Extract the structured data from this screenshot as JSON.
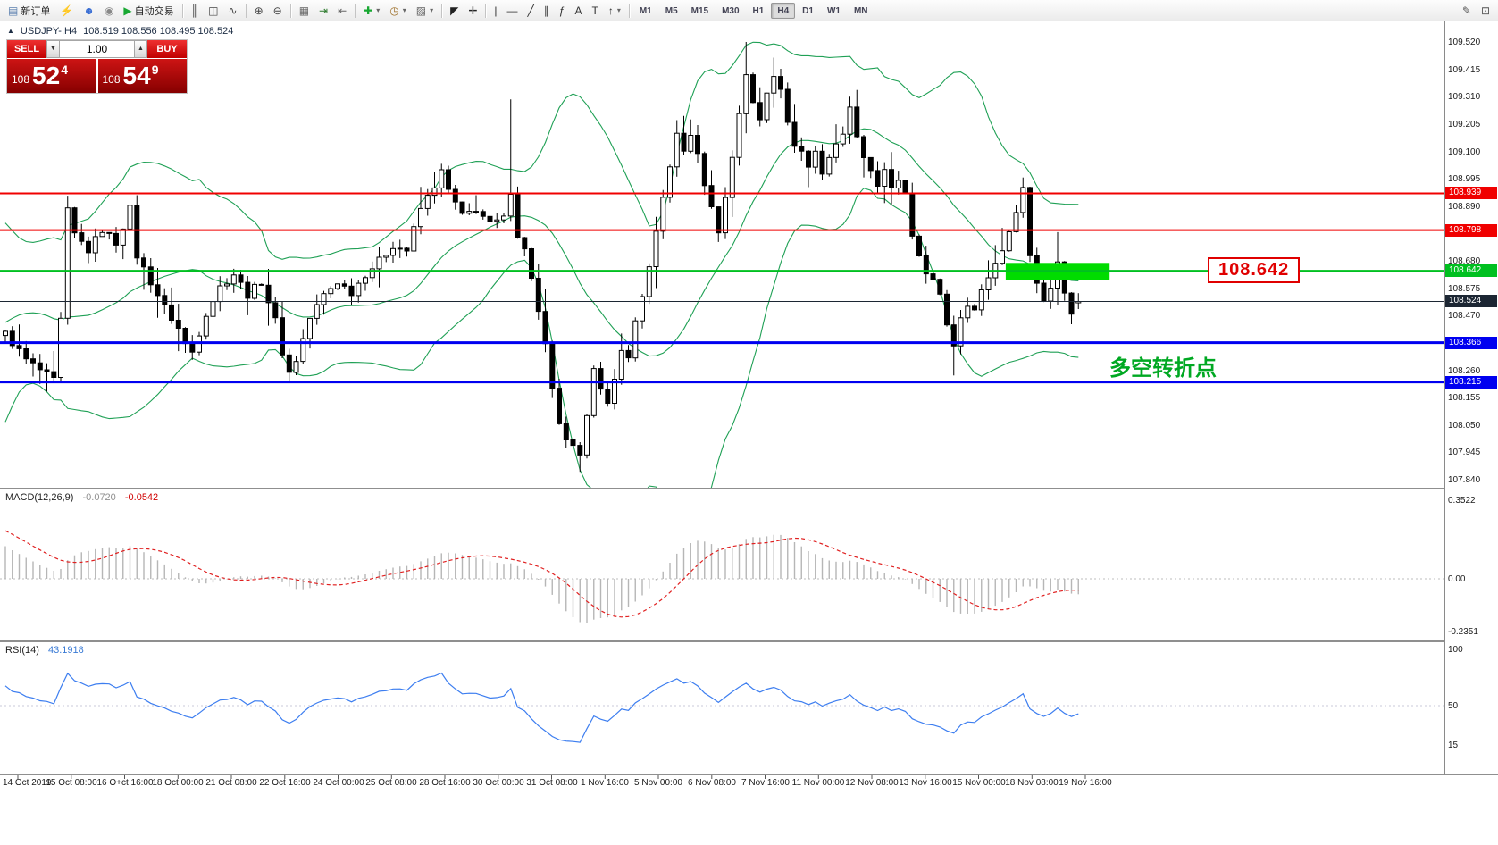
{
  "toolbar": {
    "caret_icon": "▾",
    "groups": [
      {
        "items": [
          {
            "name": "new-order",
            "icon": "▤",
            "label": "新订单",
            "color": "#5a7fae"
          },
          {
            "name": "news-alert",
            "icon": "⚡",
            "color": "#e0a010"
          },
          {
            "name": "market-watch",
            "icon": "☻",
            "color": "#3b6fd4"
          },
          {
            "name": "support",
            "icon": "◉",
            "color": "#888888"
          },
          {
            "name": "autotrading",
            "icon": "▶",
            "label": "自动交易",
            "color": "#18a832"
          }
        ]
      },
      {
        "items": [
          {
            "name": "bar-chart",
            "icon": "║",
            "color": "#444444"
          },
          {
            "name": "candlestick-chart",
            "icon": "◫",
            "color": "#444444"
          },
          {
            "name": "line-chart",
            "icon": "∿",
            "color": "#444444"
          }
        ]
      },
      {
        "items": [
          {
            "name": "zoom-in",
            "icon": "⊕",
            "color": "#444444"
          },
          {
            "name": "zoom-out",
            "icon": "⊖",
            "color": "#444444"
          }
        ]
      },
      {
        "items": [
          {
            "name": "tile-windows",
            "icon": "▦",
            "color": "#666666"
          },
          {
            "name": "auto-scroll",
            "icon": "⇥",
            "color": "#2c7a2c"
          },
          {
            "name": "chart-shift",
            "icon": "⇤",
            "color": "#666666"
          }
        ]
      },
      {
        "items": [
          {
            "name": "indicators",
            "icon": "✚",
            "color": "#18a832",
            "dropdown": true
          },
          {
            "name": "periods",
            "icon": "◷",
            "color": "#9a6a20",
            "dropdown": true
          },
          {
            "name": "templates",
            "icon": "▨",
            "color": "#666666",
            "dropdown": true
          }
        ]
      },
      {
        "items": [
          {
            "name": "cursor",
            "icon": "◤",
            "color": "#222222"
          },
          {
            "name": "crosshair",
            "icon": "✛",
            "color": "#222222"
          }
        ]
      },
      {
        "items": [
          {
            "name": "vertical-line",
            "icon": "|",
            "color": "#333333"
          },
          {
            "name": "horizontal-line",
            "icon": "—",
            "color": "#333333"
          },
          {
            "name": "trendline",
            "icon": "╱",
            "color": "#333333"
          },
          {
            "name": "equidistant-channel",
            "icon": "∥",
            "color": "#333333"
          },
          {
            "name": "fibonacci",
            "icon": "ƒ",
            "color": "#333333"
          },
          {
            "name": "text",
            "icon": "A",
            "color": "#333333"
          },
          {
            "name": "text-label",
            "icon": "T",
            "color": "#333333"
          },
          {
            "name": "arrows",
            "icon": "↑",
            "color": "#333333",
            "dropdown": true
          }
        ]
      },
      {
        "timeframes": [
          "M1",
          "M5",
          "M15",
          "M30",
          "H1",
          "H4",
          "D1",
          "W1",
          "MN"
        ],
        "active": "H4"
      },
      {
        "right": true,
        "items": [
          {
            "name": "pencil",
            "icon": "✎",
            "color": "#555555"
          },
          {
            "name": "screenshot",
            "icon": "⊡",
            "color": "#555555"
          }
        ]
      }
    ]
  },
  "chart_header": {
    "marker": "▲",
    "symbol": "USDJPY-,H4",
    "ohlc": "108.519 108.556 108.495 108.524"
  },
  "trade_panel": {
    "sell_label": "SELL",
    "buy_label": "BUY",
    "volume": "1.00",
    "spin_down": "▼",
    "spin_up": "▲",
    "sell_price": {
      "prefix": "108",
      "big": "52",
      "sup": "4"
    },
    "buy_price": {
      "prefix": "108",
      "big": "54",
      "sup": "9"
    }
  },
  "chart_data": {
    "type": "candlestick",
    "symbol": "USDJPY",
    "timeframe": "H4",
    "candle_count": 156,
    "candle_colors": {
      "up": "#ffffff",
      "down": "#000000",
      "wick": "#000000"
    },
    "last_candle": {
      "o": 108.519,
      "h": 108.556,
      "l": 108.495,
      "c": 108.524
    },
    "pre_path": [
      [
        -26,
        107.6
      ],
      [
        -20,
        107.95
      ],
      [
        -14,
        108.4
      ],
      [
        -10,
        108.75
      ],
      [
        -6,
        108.55
      ],
      [
        -2,
        108.4
      ]
    ],
    "price_path": [
      [
        0,
        108.4
      ],
      [
        3,
        108.3
      ],
      [
        6,
        108.24
      ],
      [
        7,
        108.22
      ],
      [
        8,
        108.45
      ],
      [
        9,
        108.87
      ],
      [
        10,
        108.78
      ],
      [
        12,
        108.72
      ],
      [
        14,
        108.8
      ],
      [
        16,
        108.75
      ],
      [
        18,
        108.88
      ],
      [
        19,
        108.7
      ],
      [
        21,
        108.6
      ],
      [
        23,
        108.5
      ],
      [
        25,
        108.42
      ],
      [
        26,
        108.36
      ],
      [
        27,
        108.33
      ],
      [
        29,
        108.48
      ],
      [
        31,
        108.58
      ],
      [
        33,
        108.63
      ],
      [
        35,
        108.55
      ],
      [
        37,
        108.6
      ],
      [
        39,
        108.45
      ],
      [
        40,
        108.33
      ],
      [
        41,
        108.25
      ],
      [
        42,
        108.3
      ],
      [
        44,
        108.46
      ],
      [
        46,
        108.55
      ],
      [
        48,
        108.6
      ],
      [
        50,
        108.56
      ],
      [
        52,
        108.63
      ],
      [
        54,
        108.68
      ],
      [
        56,
        108.74
      ],
      [
        58,
        108.72
      ],
      [
        60,
        108.88
      ],
      [
        62,
        108.97
      ],
      [
        63,
        109.02
      ],
      [
        64,
        108.95
      ],
      [
        66,
        108.85
      ],
      [
        68,
        108.88
      ],
      [
        70,
        108.82
      ],
      [
        72,
        108.84
      ],
      [
        73,
        108.95
      ],
      [
        74,
        108.78
      ],
      [
        75,
        108.72
      ],
      [
        76,
        108.62
      ],
      [
        77,
        108.48
      ],
      [
        78,
        108.35
      ],
      [
        79,
        108.18
      ],
      [
        80,
        108.06
      ],
      [
        81,
        107.98
      ],
      [
        82,
        107.96
      ],
      [
        83,
        107.92
      ],
      [
        84,
        108.1
      ],
      [
        85,
        108.28
      ],
      [
        86,
        108.18
      ],
      [
        87,
        108.12
      ],
      [
        88,
        108.22
      ],
      [
        89,
        108.35
      ],
      [
        90,
        108.3
      ],
      [
        91,
        108.45
      ],
      [
        92,
        108.55
      ],
      [
        93,
        108.65
      ],
      [
        94,
        108.78
      ],
      [
        95,
        108.92
      ],
      [
        96,
        109.05
      ],
      [
        97,
        109.16
      ],
      [
        98,
        109.1
      ],
      [
        99,
        109.17
      ],
      [
        100,
        109.08
      ],
      [
        101,
        108.98
      ],
      [
        102,
        108.88
      ],
      [
        103,
        108.8
      ],
      [
        104,
        108.92
      ],
      [
        105,
        109.08
      ],
      [
        106,
        109.25
      ],
      [
        107,
        109.4
      ],
      [
        108,
        109.28
      ],
      [
        109,
        109.22
      ],
      [
        110,
        109.33
      ],
      [
        111,
        109.4
      ],
      [
        112,
        109.35
      ],
      [
        113,
        109.2
      ],
      [
        114,
        109.13
      ],
      [
        115,
        109.1
      ],
      [
        116,
        109.04
      ],
      [
        117,
        109.1
      ],
      [
        118,
        109.02
      ],
      [
        119,
        109.08
      ],
      [
        120,
        109.12
      ],
      [
        121,
        109.18
      ],
      [
        122,
        109.26
      ],
      [
        123,
        109.17
      ],
      [
        124,
        109.08
      ],
      [
        125,
        109.03
      ],
      [
        126,
        108.97
      ],
      [
        127,
        109.02
      ],
      [
        128,
        108.95
      ],
      [
        129,
        108.99
      ],
      [
        130,
        108.93
      ],
      [
        131,
        108.76
      ],
      [
        132,
        108.7
      ],
      [
        133,
        108.64
      ],
      [
        134,
        108.6
      ],
      [
        135,
        108.54
      ],
      [
        136,
        108.44
      ],
      [
        137,
        108.36
      ],
      [
        138,
        108.47
      ],
      [
        139,
        108.52
      ],
      [
        140,
        108.49
      ],
      [
        141,
        108.56
      ],
      [
        142,
        108.62
      ],
      [
        143,
        108.67
      ],
      [
        144,
        108.73
      ],
      [
        145,
        108.78
      ],
      [
        146,
        108.88
      ],
      [
        147,
        108.96
      ],
      [
        148,
        108.7
      ],
      [
        149,
        108.6
      ],
      [
        150,
        108.53
      ],
      [
        151,
        108.58
      ],
      [
        152,
        108.68
      ],
      [
        153,
        108.57
      ],
      [
        154,
        108.47
      ],
      [
        155,
        108.524
      ]
    ],
    "wick_overrides": [
      {
        "i": 6,
        "l": 108.2
      },
      {
        "i": 9,
        "h": 108.93
      },
      {
        "i": 18,
        "h": 108.97
      },
      {
        "i": 27,
        "l": 108.3
      },
      {
        "i": 41,
        "l": 108.22
      },
      {
        "i": 63,
        "h": 109.05
      },
      {
        "i": 73,
        "h": 109.3
      },
      {
        "i": 83,
        "l": 107.87
      },
      {
        "i": 107,
        "h": 109.52
      },
      {
        "i": 111,
        "h": 109.46
      },
      {
        "i": 122,
        "h": 109.31
      },
      {
        "i": 137,
        "l": 108.24
      },
      {
        "i": 147,
        "h": 109.0
      },
      {
        "i": 152,
        "h": 108.79
      }
    ],
    "indicators": {
      "bollinger": {
        "period": 20,
        "deviation": 2,
        "color": "#1fa055"
      },
      "macd": {
        "label": "MACD(12,26,9)",
        "values": [
          "-0.0720",
          "-0.0542"
        ],
        "fast": 12,
        "slow": 26,
        "signal": 9,
        "histogram_color": "#b6b6b6",
        "signal_color": "#e02020",
        "axis": [
          0.3522,
          0,
          -0.2351
        ],
        "axis_labels": [
          "0.3522",
          "0.00",
          "-0.2351"
        ]
      },
      "rsi": {
        "label": "RSI(14)",
        "value": "43.1918",
        "period": 14,
        "color": "#3d7ef0",
        "axis": [
          100,
          50,
          15
        ],
        "axis_labels": [
          "100",
          "50",
          "15"
        ]
      }
    },
    "y_axis": {
      "max": 109.52,
      "min": 107.84,
      "step": 0.105,
      "labels": [
        "109.520",
        "109.415",
        "109.310",
        "109.205",
        "109.100",
        "108.995",
        "108.890",
        "108.785",
        "108.680",
        "108.575",
        "108.470",
        "108.365",
        "108.260",
        "108.155",
        "108.050",
        "107.945",
        "107.840"
      ]
    },
    "x_axis": {
      "labels": [
        "14 Oct 2019",
        "15 Oct 08:00",
        "16 O+ct 16:00",
        "18 Oct 00:00",
        "21 Oct 08:00",
        "22 Oct 16:00",
        "24 Oct 00:00",
        "25 Oct 08:00",
        "28 Oct 16:00",
        "30 Oct 00:00",
        "31 Oct 08:00",
        "1 Nov 16:00",
        "5 Nov 00:00",
        "6 Nov 08:00",
        "7 Nov 16:00",
        "11 Nov 00:00",
        "12 Nov 08:00",
        "13 Nov 16:00",
        "15 Nov 00:00",
        "18 Nov 08:00",
        "19 Nov 16:00"
      ]
    },
    "price_lines": [
      {
        "price": 108.939,
        "color": "#f00000",
        "width": 2,
        "tag": "108.939"
      },
      {
        "price": 108.798,
        "color": "#f00000",
        "width": 2,
        "tag": "108.798"
      },
      {
        "price": 108.642,
        "color": "#00c020",
        "width": 2,
        "tag": "108.642"
      },
      {
        "price": 108.366,
        "color": "#0000f0",
        "width": 3,
        "tag": "108.366"
      },
      {
        "price": 108.215,
        "color": "#0000f0",
        "width": 3,
        "tag": "108.215"
      }
    ],
    "current_price": {
      "price": 108.524,
      "tag": "108.524",
      "color": "#1c2633"
    },
    "annotations": {
      "rect": {
        "price_top": 108.672,
        "price_bottom": 108.608,
        "index_from": 144.5,
        "index_to": 159.5,
        "color": "#00dc00"
      },
      "price_label": {
        "text": "108.642",
        "color": "#e00000"
      },
      "note": {
        "text": "多空转折点",
        "color": "#00a822"
      }
    }
  }
}
